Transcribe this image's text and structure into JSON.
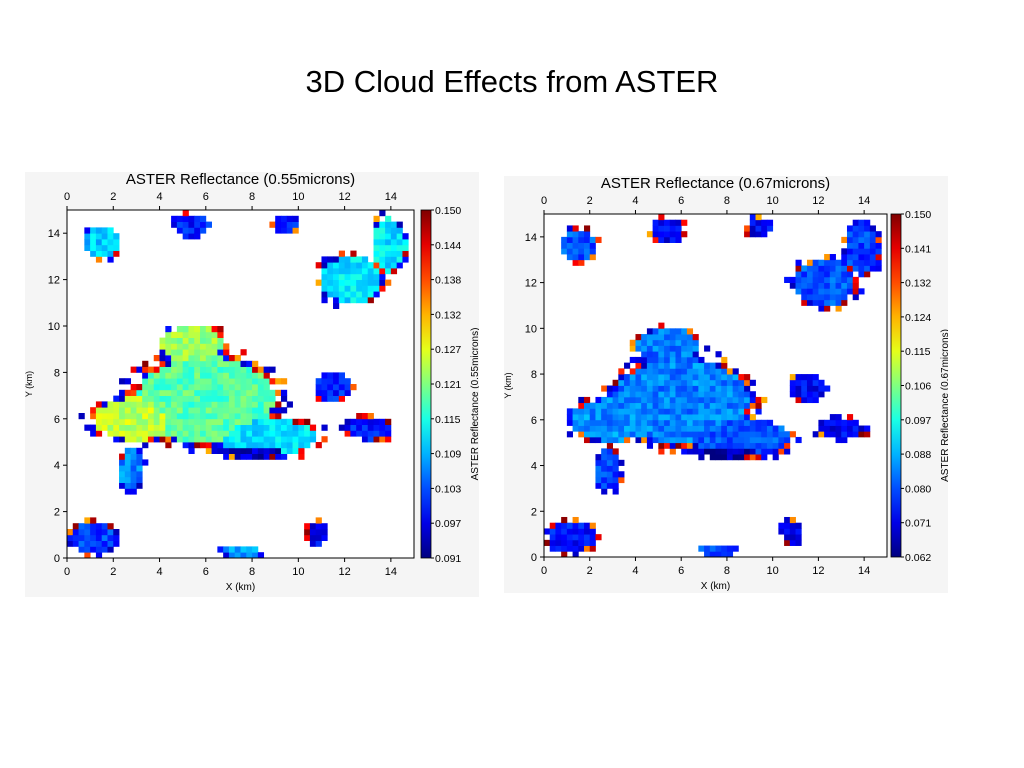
{
  "page": {
    "title": "3D Cloud Effects from ASTER"
  },
  "chart_data": [
    {
      "type": "heatmap",
      "title": "ASTER Reflectance (0.55microns)",
      "xlabel": "X (km)",
      "ylabel": "Y (km)",
      "xlim": [
        0,
        15
      ],
      "ylim": [
        0,
        15
      ],
      "x_ticks": [
        0,
        2,
        4,
        6,
        8,
        10,
        12,
        14
      ],
      "y_ticks": [
        0,
        2,
        4,
        6,
        8,
        10,
        12,
        14
      ],
      "colorbar": {
        "label": "ASTER Reflectance (0.55microns)",
        "min": 0.091,
        "max": 0.15,
        "tick_labels": [
          "0.150",
          "0.144",
          "0.138",
          "0.132",
          "0.127",
          "0.121",
          "0.115",
          "0.109",
          "0.103",
          "0.097",
          "0.091"
        ]
      },
      "cloud_regions": [
        {
          "x": 6.0,
          "y": 6.8,
          "rx": 3.6,
          "ry": 2.3,
          "value": 0.118
        },
        {
          "x": 8.6,
          "y": 5.2,
          "rx": 2.6,
          "ry": 1.0,
          "value": 0.112
        },
        {
          "x": 3.0,
          "y": 6.0,
          "rx": 2.2,
          "ry": 1.1,
          "value": 0.124
        },
        {
          "x": 5.4,
          "y": 9.2,
          "rx": 1.6,
          "ry": 1.0,
          "value": 0.122
        },
        {
          "x": 2.8,
          "y": 3.8,
          "rx": 0.6,
          "ry": 1.1,
          "value": 0.106
        },
        {
          "x": 12.3,
          "y": 12.0,
          "rx": 1.6,
          "ry": 1.2,
          "value": 0.112
        },
        {
          "x": 13.9,
          "y": 13.5,
          "rx": 0.9,
          "ry": 1.4,
          "value": 0.112
        },
        {
          "x": 1.5,
          "y": 13.6,
          "rx": 0.9,
          "ry": 0.8,
          "value": 0.11
        },
        {
          "x": 5.4,
          "y": 14.3,
          "rx": 0.9,
          "ry": 0.6,
          "value": 0.1
        },
        {
          "x": 9.4,
          "y": 14.4,
          "rx": 0.6,
          "ry": 0.5,
          "value": 0.1
        },
        {
          "x": 13.0,
          "y": 5.6,
          "rx": 1.2,
          "ry": 0.6,
          "value": 0.1
        },
        {
          "x": 11.5,
          "y": 7.4,
          "rx": 0.9,
          "ry": 0.7,
          "value": 0.1
        },
        {
          "x": 1.2,
          "y": 0.9,
          "rx": 1.2,
          "ry": 0.8,
          "value": 0.102
        },
        {
          "x": 10.8,
          "y": 1.1,
          "rx": 0.5,
          "ry": 0.6,
          "value": 0.098
        },
        {
          "x": 7.6,
          "y": 0.3,
          "rx": 1.0,
          "ry": 0.3,
          "value": 0.108
        },
        {
          "x": 8.0,
          "y": 4.6,
          "rx": 2.0,
          "ry": 0.3,
          "value": 0.095
        }
      ]
    },
    {
      "type": "heatmap",
      "title": "ASTER Reflectance (0.67microns)",
      "xlabel": "X (km)",
      "ylabel": "Y (km)",
      "xlim": [
        0,
        15
      ],
      "ylim": [
        0,
        15
      ],
      "x_ticks": [
        0,
        2,
        4,
        6,
        8,
        10,
        12,
        14
      ],
      "y_ticks": [
        0,
        2,
        4,
        6,
        8,
        10,
        12,
        14
      ],
      "colorbar": {
        "label": "ASTER Reflectance (0.67microns)",
        "min": 0.062,
        "max": 0.15,
        "tick_labels": [
          "0.150",
          "0.141",
          "0.132",
          "0.124",
          "0.115",
          "0.106",
          "0.097",
          "0.088",
          "0.080",
          "0.071",
          "0.062"
        ]
      },
      "cloud_regions": [
        {
          "x": 6.0,
          "y": 6.8,
          "rx": 3.6,
          "ry": 2.3,
          "value": 0.084
        },
        {
          "x": 8.6,
          "y": 5.2,
          "rx": 2.6,
          "ry": 1.0,
          "value": 0.08
        },
        {
          "x": 3.0,
          "y": 6.0,
          "rx": 2.2,
          "ry": 1.1,
          "value": 0.085
        },
        {
          "x": 5.4,
          "y": 9.2,
          "rx": 1.6,
          "ry": 1.0,
          "value": 0.083
        },
        {
          "x": 2.8,
          "y": 3.8,
          "rx": 0.6,
          "ry": 1.1,
          "value": 0.079
        },
        {
          "x": 12.3,
          "y": 12.0,
          "rx": 1.6,
          "ry": 1.2,
          "value": 0.08
        },
        {
          "x": 13.9,
          "y": 13.5,
          "rx": 0.9,
          "ry": 1.4,
          "value": 0.078
        },
        {
          "x": 1.5,
          "y": 13.6,
          "rx": 0.9,
          "ry": 0.8,
          "value": 0.08
        },
        {
          "x": 5.4,
          "y": 14.3,
          "rx": 0.9,
          "ry": 0.6,
          "value": 0.072
        },
        {
          "x": 9.4,
          "y": 14.4,
          "rx": 0.6,
          "ry": 0.5,
          "value": 0.072
        },
        {
          "x": 13.0,
          "y": 5.6,
          "rx": 1.2,
          "ry": 0.6,
          "value": 0.072
        },
        {
          "x": 11.5,
          "y": 7.4,
          "rx": 0.9,
          "ry": 0.7,
          "value": 0.073
        },
        {
          "x": 1.2,
          "y": 0.9,
          "rx": 1.2,
          "ry": 0.8,
          "value": 0.074
        },
        {
          "x": 10.8,
          "y": 1.1,
          "rx": 0.5,
          "ry": 0.6,
          "value": 0.07
        },
        {
          "x": 7.6,
          "y": 0.3,
          "rx": 1.0,
          "ry": 0.3,
          "value": 0.079
        },
        {
          "x": 8.0,
          "y": 4.6,
          "rx": 2.0,
          "ry": 0.3,
          "value": 0.066
        }
      ]
    }
  ]
}
